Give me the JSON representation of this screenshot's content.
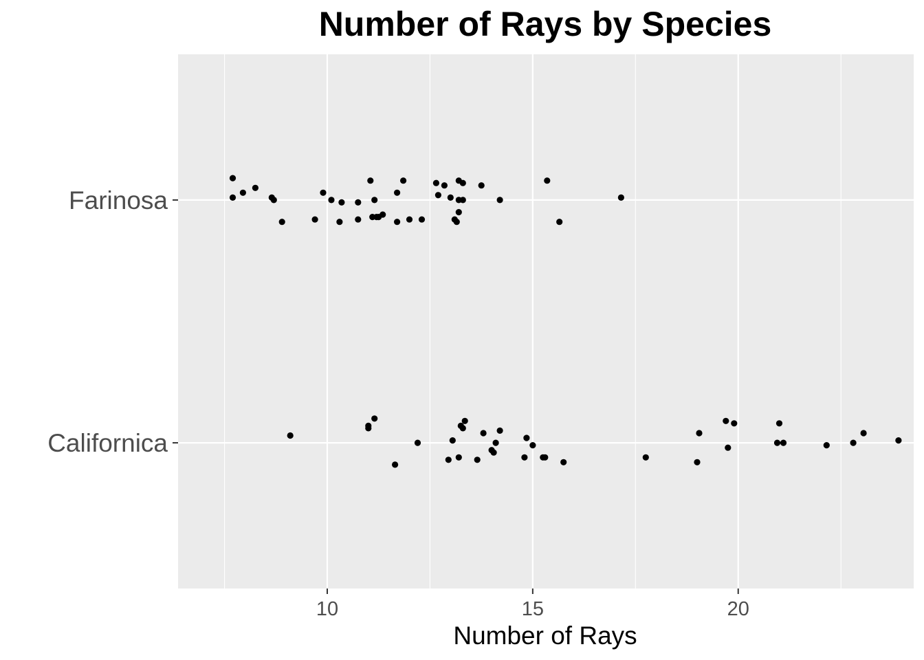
{
  "chart_data": {
    "type": "scatter",
    "title": "Number of Rays by Species",
    "xlabel": "Number of Rays",
    "ylabel": "",
    "xlim": [
      6.37,
      24.27
    ],
    "xticks": [
      10,
      15,
      20
    ],
    "categories": [
      "Californica",
      "Farinosa"
    ],
    "grid": true,
    "legend": "none",
    "colors": {
      "panel": "#ebebeb",
      "grid": "#ffffff",
      "point": "#000000",
      "tick_text": "#4d4d4d",
      "tick_mark": "#333333"
    },
    "series": [
      {
        "category": "Farinosa",
        "points": [
          {
            "x": 7.7,
            "y": 0.09
          },
          {
            "x": 7.7,
            "y": 0.01
          },
          {
            "x": 7.95,
            "y": 0.03
          },
          {
            "x": 8.25,
            "y": 0.05
          },
          {
            "x": 8.65,
            "y": 0.01
          },
          {
            "x": 8.7,
            "y": 0.0
          },
          {
            "x": 8.9,
            "y": -0.09
          },
          {
            "x": 9.7,
            "y": -0.08
          },
          {
            "x": 9.9,
            "y": 0.03
          },
          {
            "x": 10.1,
            "y": 0.0
          },
          {
            "x": 10.35,
            "y": -0.01
          },
          {
            "x": 10.3,
            "y": -0.09
          },
          {
            "x": 10.75,
            "y": -0.01
          },
          {
            "x": 10.75,
            "y": -0.08
          },
          {
            "x": 11.05,
            "y": 0.08
          },
          {
            "x": 11.1,
            "y": -0.07
          },
          {
            "x": 11.15,
            "y": 0.0
          },
          {
            "x": 11.2,
            "y": -0.07
          },
          {
            "x": 11.25,
            "y": -0.07
          },
          {
            "x": 11.35,
            "y": -0.06
          },
          {
            "x": 11.7,
            "y": 0.03
          },
          {
            "x": 11.7,
            "y": -0.09
          },
          {
            "x": 11.85,
            "y": 0.08
          },
          {
            "x": 12.0,
            "y": -0.08
          },
          {
            "x": 12.3,
            "y": -0.08
          },
          {
            "x": 12.65,
            "y": 0.07
          },
          {
            "x": 12.7,
            "y": 0.02
          },
          {
            "x": 12.85,
            "y": 0.06
          },
          {
            "x": 13.0,
            "y": 0.01
          },
          {
            "x": 13.1,
            "y": -0.08
          },
          {
            "x": 13.15,
            "y": -0.09
          },
          {
            "x": 13.2,
            "y": 0.08
          },
          {
            "x": 13.2,
            "y": 0.0
          },
          {
            "x": 13.2,
            "y": -0.05
          },
          {
            "x": 13.3,
            "y": 0.0
          },
          {
            "x": 13.3,
            "y": 0.07
          },
          {
            "x": 13.75,
            "y": 0.06
          },
          {
            "x": 14.2,
            "y": 0.0
          },
          {
            "x": 15.35,
            "y": 0.08
          },
          {
            "x": 15.65,
            "y": -0.09
          },
          {
            "x": 17.15,
            "y": 0.01
          }
        ]
      },
      {
        "category": "Californica",
        "points": [
          {
            "x": 9.1,
            "y": 0.03
          },
          {
            "x": 11.0,
            "y": 0.06
          },
          {
            "x": 11.0,
            "y": 0.07
          },
          {
            "x": 11.15,
            "y": 0.1
          },
          {
            "x": 11.65,
            "y": -0.09
          },
          {
            "x": 12.2,
            "y": 0.0
          },
          {
            "x": 12.95,
            "y": -0.07
          },
          {
            "x": 13.05,
            "y": 0.01
          },
          {
            "x": 13.2,
            "y": -0.06
          },
          {
            "x": 13.25,
            "y": 0.07
          },
          {
            "x": 13.3,
            "y": 0.06
          },
          {
            "x": 13.35,
            "y": 0.09
          },
          {
            "x": 13.65,
            "y": -0.07
          },
          {
            "x": 13.8,
            "y": 0.04
          },
          {
            "x": 14.0,
            "y": -0.03
          },
          {
            "x": 14.05,
            "y": -0.04
          },
          {
            "x": 14.1,
            "y": 0.0
          },
          {
            "x": 14.2,
            "y": 0.05
          },
          {
            "x": 14.8,
            "y": -0.06
          },
          {
            "x": 14.85,
            "y": 0.02
          },
          {
            "x": 15.0,
            "y": -0.01
          },
          {
            "x": 15.25,
            "y": -0.06
          },
          {
            "x": 15.3,
            "y": -0.06
          },
          {
            "x": 15.75,
            "y": -0.08
          },
          {
            "x": 17.75,
            "y": -0.06
          },
          {
            "x": 19.0,
            "y": -0.08
          },
          {
            "x": 19.05,
            "y": 0.04
          },
          {
            "x": 19.7,
            "y": 0.09
          },
          {
            "x": 19.75,
            "y": -0.02
          },
          {
            "x": 19.9,
            "y": 0.08
          },
          {
            "x": 20.95,
            "y": 0.0
          },
          {
            "x": 21.0,
            "y": 0.08
          },
          {
            "x": 21.1,
            "y": 0.0
          },
          {
            "x": 22.15,
            "y": -0.01
          },
          {
            "x": 22.8,
            "y": 0.0
          },
          {
            "x": 23.05,
            "y": 0.04
          },
          {
            "x": 23.9,
            "y": 0.01
          }
        ]
      }
    ]
  }
}
